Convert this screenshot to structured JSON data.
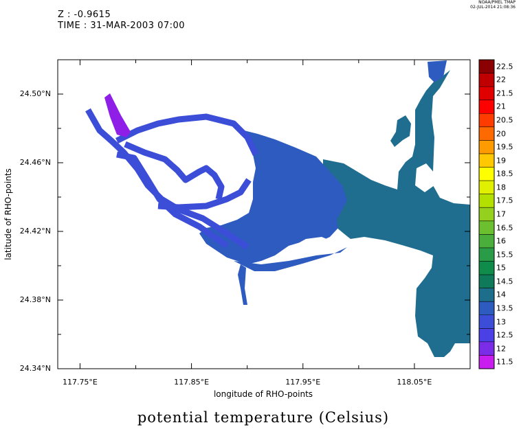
{
  "header": {
    "z_line": "Z : -0.9615",
    "time_line": "TIME : 31-MAR-2003 07:00",
    "stamp_org": "NOAA/PMEL TMAP",
    "stamp_date": "02-JUL-2014 21:08:36"
  },
  "map": {
    "title": "potential temperature (Celsius)",
    "xlabel": "longitude of RHO-points",
    "ylabel": "latitude of RHO-points",
    "x_range": [
      117.73,
      118.1
    ],
    "y_range": [
      24.34,
      24.52
    ],
    "x_ticks": [
      "117.75°E",
      "117.85°E",
      "117.95°E",
      "118.05°E"
    ],
    "y_ticks": [
      "24.50°N",
      "24.46°N",
      "24.42°N",
      "24.38°N",
      "24.34°N"
    ],
    "fill_colors": {
      "bay": "#2e5bbf",
      "inner_channels": "#3c4ed8",
      "outer_estuary": "#1f6e8f",
      "channel_tip": "#8f1fe6"
    }
  },
  "colorbar": {
    "labels": [
      "22.5",
      "22",
      "21.5",
      "21",
      "20.5",
      "20",
      "19.5",
      "19",
      "18.5",
      "18",
      "17.5",
      "17",
      "16.5",
      "16",
      "15.5",
      "15",
      "14.5",
      "14",
      "13.5",
      "13",
      "12.5",
      "12",
      "11.5"
    ],
    "colors": [
      "#8b0000",
      "#c00000",
      "#e00000",
      "#ff0000",
      "#ff3c00",
      "#ff6a00",
      "#ff9a00",
      "#ffc800",
      "#ffff00",
      "#e0f000",
      "#b4e000",
      "#96d01e",
      "#6cc030",
      "#4aae3a",
      "#2a9c48",
      "#108c4a",
      "#0f7a5a",
      "#1d6e8a",
      "#2e5bbf",
      "#3c4ed8",
      "#4b3fe6",
      "#7b2ce6",
      "#c81ef0"
    ]
  }
}
